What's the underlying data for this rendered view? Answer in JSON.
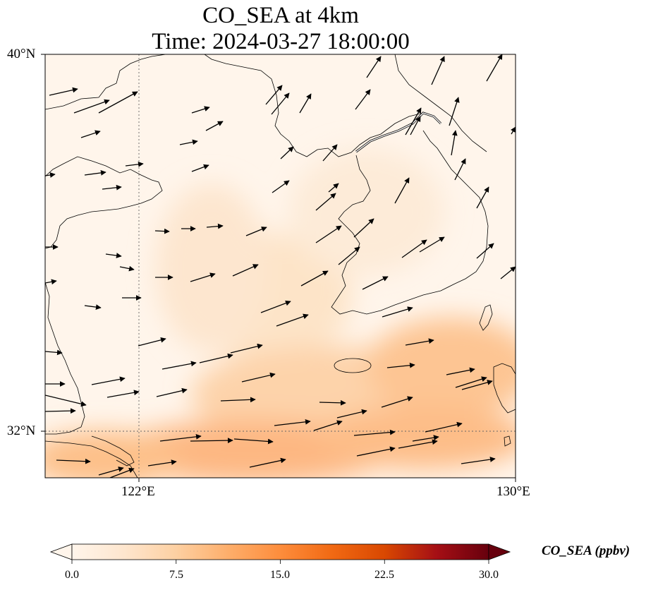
{
  "title": {
    "line1": "CO_SEA at 4km",
    "line2": "Time: 2024-03-27 18:00:00"
  },
  "map": {
    "extent": {
      "lon_min": 120,
      "lon_max": 130,
      "lat_min": 31,
      "lat_max": 40
    },
    "lat_ticks": [
      {
        "value": 40,
        "label": "40°N"
      },
      {
        "value": 32,
        "label": "32°N"
      }
    ],
    "lon_ticks": [
      {
        "value": 122,
        "label": "122°E"
      },
      {
        "value": 130,
        "label": "130°E"
      }
    ],
    "gridlines": {
      "lat": [
        32
      ],
      "lon": [
        122
      ],
      "style": "dotted"
    },
    "field_colormap": "Oranges",
    "wind_vectors": true
  },
  "colorbar": {
    "label": "CO_SEA (ppbv)",
    "min": 0.0,
    "max": 30.0,
    "extend": "both",
    "ticks": [
      "0.0",
      "7.5",
      "15.0",
      "22.5",
      "30.0"
    ],
    "colors": [
      "#fff5eb",
      "#fee6ce",
      "#fdd0a2",
      "#fdae6b",
      "#fd8d3c",
      "#f16913",
      "#d94801",
      "#a50f15",
      "#67000d"
    ]
  }
}
